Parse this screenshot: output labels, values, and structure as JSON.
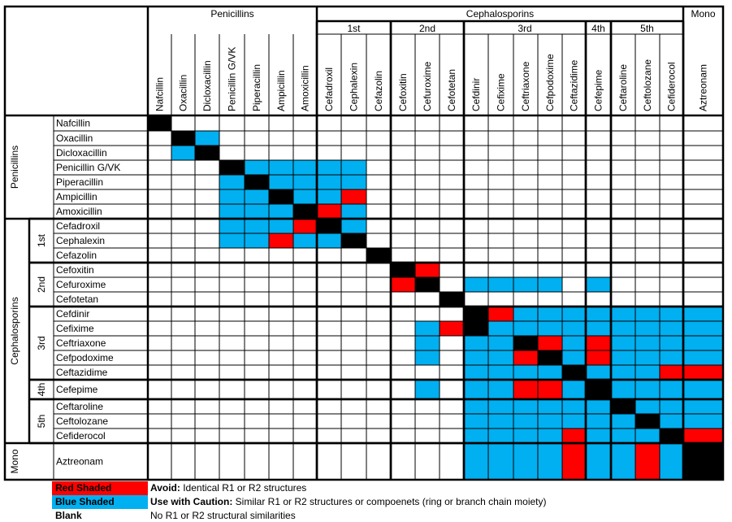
{
  "colors": {
    "red": "#FF0000",
    "blue": "#00B0F0",
    "black": "#000000",
    "white": "#FFFFFF"
  },
  "groups": [
    {
      "label": "Penicillins",
      "count": 7
    },
    {
      "label": "Cephalosporins",
      "count": 15
    },
    {
      "label": "Mono",
      "count": 1
    }
  ],
  "subgroups": [
    {
      "label": "1st",
      "count": 3
    },
    {
      "label": "2nd",
      "count": 3
    },
    {
      "label": "3rd",
      "count": 5
    },
    {
      "label": "4th",
      "count": 1
    },
    {
      "label": "5th",
      "count": 3
    }
  ],
  "drugs": [
    "Nafcillin",
    "Oxacillin",
    "Dicloxacillin",
    "Penicillin G/VK",
    "Piperacillin",
    "Ampicillin",
    "Amoxicillin",
    "Cefadroxil",
    "Cephalexin",
    "Cefazolin",
    "Cefoxitin",
    "Cefuroxime",
    "Cefotetan",
    "Cefdinir",
    "Cefixime",
    "Ceftriaxone",
    "Cefpodoxime",
    "Ceftazidime",
    "Cefepime",
    "Ceftaroline",
    "Ceftolozane",
    "Cefiderocol",
    "Aztreonam"
  ],
  "matrix": [
    "B......................",
    ".BC....................",
    ".CB....................",
    "...BCCCCC..............",
    "...CBCCCC..............",
    "...CCBCCR..............",
    "...CCCBRC..............",
    "...CCCRBC..............",
    "...CCRCCB..............",
    ".........B.............",
    "..........BR...........",
    "..........RB.CCCC.C....",
    "............B..........",
    ".............BRCCCCCCCC",
    "...........CRBCCCCCCCCC",
    "...........C.CCBRCRCCCC",
    "...........C.CCRBCRCCCC",
    ".............CCCCBCCCRR",
    "...........C.CCRRCBCCCC",
    ".............CCCCCCBCCC",
    ".............CCCCCCCBCC",
    ".............CCCCRCCCBR",
    ".............CCCCRCCRCB"
  ],
  "legend": [
    {
      "swatch": "red",
      "label": "Red Shaded",
      "title": "Avoid:",
      "desc": "Identical R1 or R2 structures"
    },
    {
      "swatch": "blue",
      "label": "Blue Shaded",
      "title": "Use with Caution:",
      "desc": "Similar R1 or R2 structures or compoenets (ring or branch chain moiety)"
    },
    {
      "swatch": "none",
      "label": "Blank",
      "title": "",
      "desc": "No R1 or R2 structural similarities"
    }
  ]
}
